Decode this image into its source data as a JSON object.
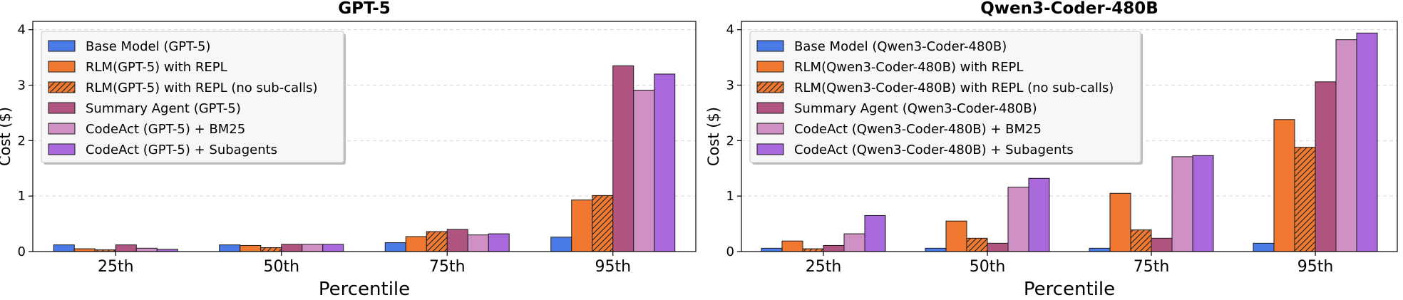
{
  "chart_data": [
    {
      "type": "bar",
      "title": "GPT-5",
      "xlabel": "Percentile",
      "ylabel": "Cost ($)",
      "categories": [
        "25th",
        "50th",
        "75th",
        "95th"
      ],
      "ylim": [
        0,
        4.15
      ],
      "yticks": [
        0,
        1,
        2,
        3,
        4
      ],
      "grid": true,
      "legend_position": "upper-left",
      "series": [
        {
          "name": "Base Model (GPT-5)",
          "values": [
            0.12,
            0.12,
            0.16,
            0.26
          ],
          "color": "#4a7be6",
          "hatch": false
        },
        {
          "name": "RLM(GPT-5) with REPL",
          "values": [
            0.05,
            0.11,
            0.27,
            0.93
          ],
          "color": "#f07830",
          "hatch": false
        },
        {
          "name": "RLM(GPT-5) with REPL (no sub-calls)",
          "values": [
            0.03,
            0.07,
            0.36,
            1.01
          ],
          "color": "#f07830",
          "hatch": true
        },
        {
          "name": "Summary Agent (GPT-5)",
          "values": [
            0.12,
            0.13,
            0.4,
            3.35
          ],
          "color": "#b05582",
          "hatch": false
        },
        {
          "name": "CodeAct (GPT-5) + BM25",
          "values": [
            0.06,
            0.13,
            0.3,
            2.91
          ],
          "color": "#cf90c4",
          "hatch": false
        },
        {
          "name": "CodeAct (GPT-5) + Subagents",
          "values": [
            0.04,
            0.13,
            0.32,
            3.2
          ],
          "color": "#a968dc",
          "hatch": false
        }
      ]
    },
    {
      "type": "bar",
      "title": "Qwen3-Coder-480B",
      "xlabel": "Percentile",
      "ylabel": "Cost ($)",
      "categories": [
        "25th",
        "50th",
        "75th",
        "95th"
      ],
      "ylim": [
        0,
        4.15
      ],
      "yticks": [
        0,
        1,
        2,
        3,
        4
      ],
      "grid": true,
      "legend_position": "upper-left",
      "series": [
        {
          "name": "Base Model (Qwen3-Coder-480B)",
          "values": [
            0.06,
            0.06,
            0.06,
            0.15
          ],
          "color": "#4a7be6",
          "hatch": false
        },
        {
          "name": "RLM(Qwen3-Coder-480B) with REPL",
          "values": [
            0.19,
            0.55,
            1.05,
            2.38
          ],
          "color": "#f07830",
          "hatch": false
        },
        {
          "name": "RLM(Qwen3-Coder-480B) with REPL (no sub-calls)",
          "values": [
            0.05,
            0.24,
            0.39,
            1.88
          ],
          "color": "#f07830",
          "hatch": true
        },
        {
          "name": "Summary Agent (Qwen3-Coder-480B)",
          "values": [
            0.11,
            0.15,
            0.24,
            3.06
          ],
          "color": "#b05582",
          "hatch": false
        },
        {
          "name": "CodeAct (Qwen3-Coder-480B) + BM25",
          "values": [
            0.32,
            1.16,
            1.71,
            3.82
          ],
          "color": "#cf90c4",
          "hatch": false
        },
        {
          "name": "CodeAct (Qwen3-Coder-480B) + Subagents",
          "values": [
            0.65,
            1.32,
            1.73,
            3.94
          ],
          "color": "#a968dc",
          "hatch": false
        }
      ]
    }
  ]
}
